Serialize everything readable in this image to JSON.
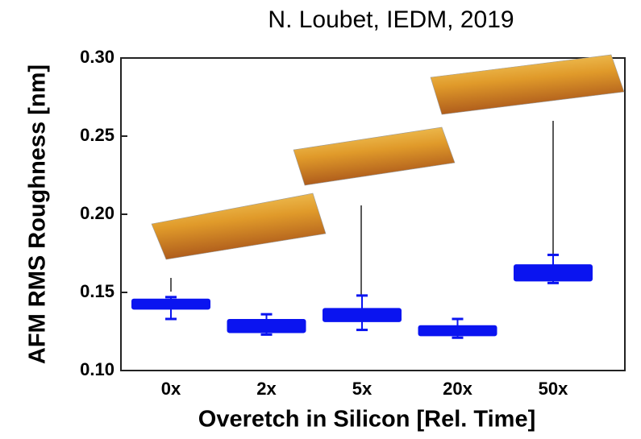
{
  "chart_data": {
    "type": "box",
    "title": "N. Loubet, IEDM, 2019",
    "x_label": "Overetch in Silicon [Rel. Time]",
    "y_label": "AFM RMS Roughness [nm]",
    "categories": [
      "0x",
      "2x",
      "5x",
      "20x",
      "50x"
    ],
    "color": "#0a14f0",
    "min": [
      0.133,
      0.123,
      0.126,
      0.121,
      0.156
    ],
    "q1": [
      0.139,
      0.124,
      0.131,
      0.122,
      0.157
    ],
    "median": [
      0.142,
      0.128,
      0.134,
      0.125,
      0.162
    ],
    "q3": [
      0.146,
      0.133,
      0.14,
      0.129,
      0.168
    ],
    "max": [
      0.147,
      0.136,
      0.148,
      0.133,
      0.174
    ],
    "ylim": [
      0.1,
      0.3
    ],
    "yticks": [
      {
        "value": 0.1,
        "label": "0.10"
      },
      0.15,
      {
        "value": 0.2,
        "label": "0.20"
      },
      0.25,
      {
        "value": 0.3,
        "label": "0.30"
      }
    ]
  }
}
